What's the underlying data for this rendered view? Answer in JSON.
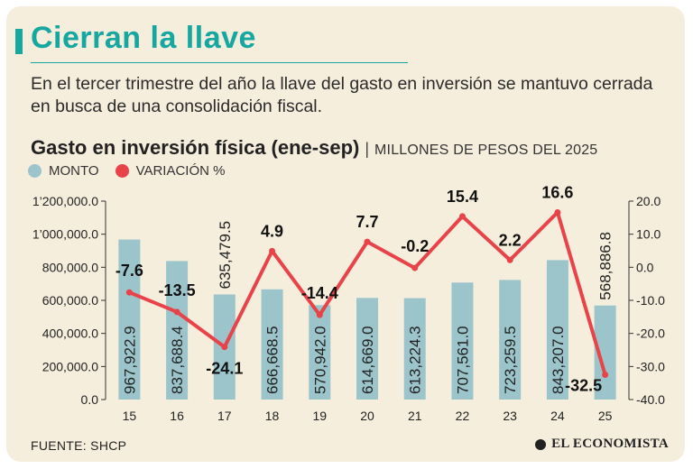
{
  "header": {
    "title": "Cierran la llave",
    "subtitle": "En el tercer trimestre del año la llave del gasto en inversión se mantuvo cerrada en busca de una consolidación fiscal."
  },
  "chart_head": {
    "title": "Gasto en inversión física (ene-sep)",
    "separator": "|",
    "units": "MILLONES DE PESOS DEL 2025"
  },
  "legend": {
    "monto": "MONTO",
    "variacion": "VARIACIÓN %"
  },
  "footer": {
    "source": "FUENTE: SHCP",
    "brand": "EL ECONOMISTA"
  },
  "colors": {
    "bar": "#9cc4cb",
    "line": "#e84349",
    "accent": "#15a7a0",
    "background": "#f6eedd"
  },
  "chart_data": {
    "type": "bar+line",
    "categories": [
      "15",
      "16",
      "17",
      "18",
      "19",
      "20",
      "21",
      "22",
      "23",
      "24",
      "25"
    ],
    "series": [
      {
        "name": "MONTO",
        "type": "bar",
        "axis": "left",
        "values": [
          967922.9,
          837688.4,
          635479.5,
          666668.5,
          570942.0,
          614669.0,
          613224.3,
          707561.0,
          723259.5,
          843207.0,
          568886.8
        ],
        "labels": [
          "967,922.9",
          "837,688.4",
          "635,479.5",
          "666,668.5",
          "570,942.0",
          "614,669.0",
          "613,224.3",
          "707,561.0",
          "723,259.5",
          "843,207.0",
          "568,886.8"
        ]
      },
      {
        "name": "VARIACIÓN %",
        "type": "line",
        "axis": "right",
        "values": [
          -7.6,
          -13.5,
          -24.1,
          4.9,
          -14.4,
          7.7,
          -0.2,
          15.4,
          2.2,
          16.6,
          -32.5
        ],
        "labels": [
          "-7.6",
          "-13.5",
          "-24.1",
          "4.9",
          "-14.4",
          "7.7",
          "-0.2",
          "15.4",
          "2.2",
          "16.6",
          "-32.5"
        ]
      }
    ],
    "left_axis": {
      "min": 0,
      "max": 1200000,
      "ticks": [
        0,
        200000,
        400000,
        600000,
        800000,
        1000000,
        1200000
      ],
      "tick_labels": [
        "0.0",
        "200,000.0",
        "400,000.0",
        "600,000.0",
        "800,000.0",
        "1’000,000.0",
        "1’200,000.0"
      ]
    },
    "right_axis": {
      "min": -40,
      "max": 20,
      "ticks": [
        -40,
        -30,
        -20,
        -10,
        0,
        10,
        20
      ],
      "tick_labels": [
        "-40.0",
        "-30.0",
        "-20.0",
        "-10.0",
        "0.0",
        "10.0",
        "20.0"
      ]
    },
    "grid": false,
    "legend_position": "top-left"
  }
}
